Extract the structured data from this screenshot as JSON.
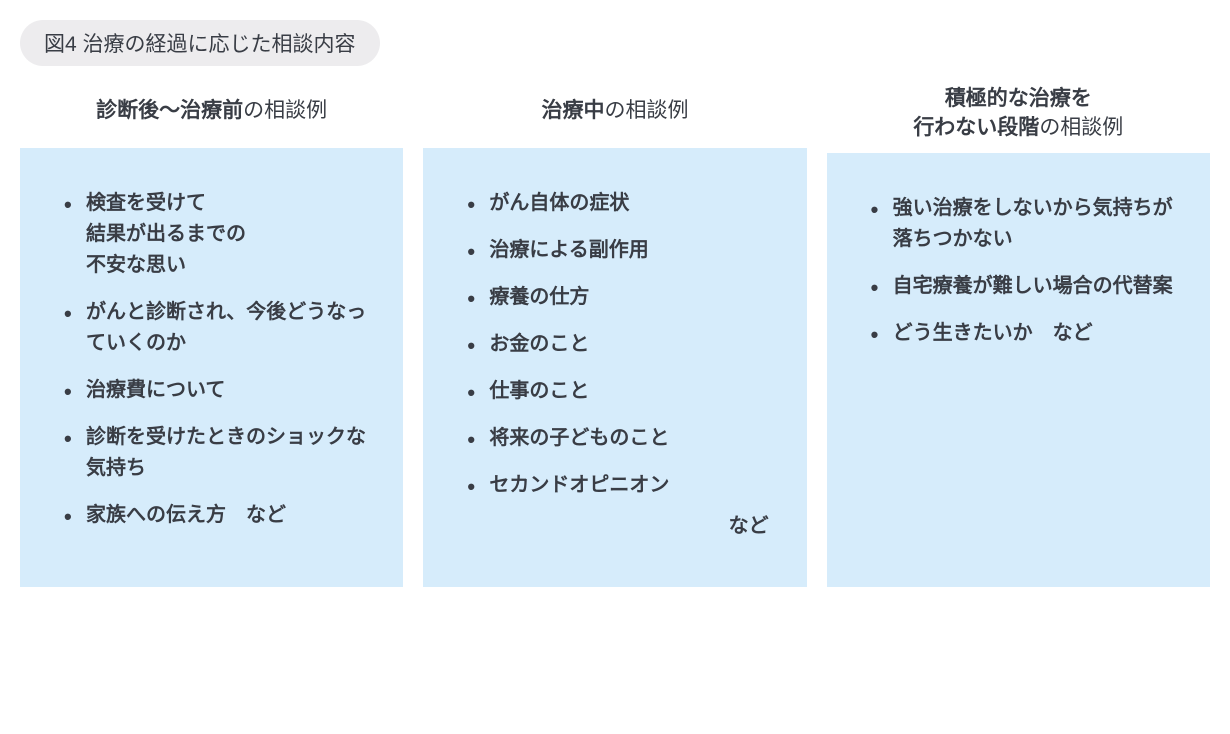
{
  "figure_title": "図4 治療の経過に応じた相談内容",
  "colors": {
    "panel_bg": "#d6ecfb",
    "title_pill_bg": "#edecee",
    "text": "#393d45",
    "page_bg": "#ffffff"
  },
  "typography": {
    "title_fontsize_pt": 16,
    "header_fontsize_pt": 16,
    "item_fontsize_pt": 15,
    "item_font_weight": 700
  },
  "columns": [
    {
      "header_bold": "診断後〜治療前",
      "header_normal": "の相談例",
      "items": [
        "検査を受けて\n結果が出るまでの\n不安な思い",
        "がんと診断され、今後どうなっていくのか",
        "治療費について",
        "診断を受けたときのショックな気持ち",
        "家族への伝え方　など"
      ],
      "trailing_style": "inline_last"
    },
    {
      "header_bold": "治療中",
      "header_normal": "の相談例",
      "items": [
        "がん自体の症状",
        "治療による副作用",
        "療養の仕方",
        "お金のこと",
        "仕事のこと",
        "将来の子どものこと",
        "セカンドオピニオン"
      ],
      "trailing_text": "など",
      "trailing_style": "below_right"
    },
    {
      "header_bold": "積極的な治療を\n行わない段階",
      "header_normal": "の相談例",
      "items": [
        "強い治療をしないから気持ちが落ちつかない",
        "自宅療養が難しい場合の代替案",
        "どう生きたいか　など"
      ],
      "trailing_style": "inline_last"
    }
  ]
}
